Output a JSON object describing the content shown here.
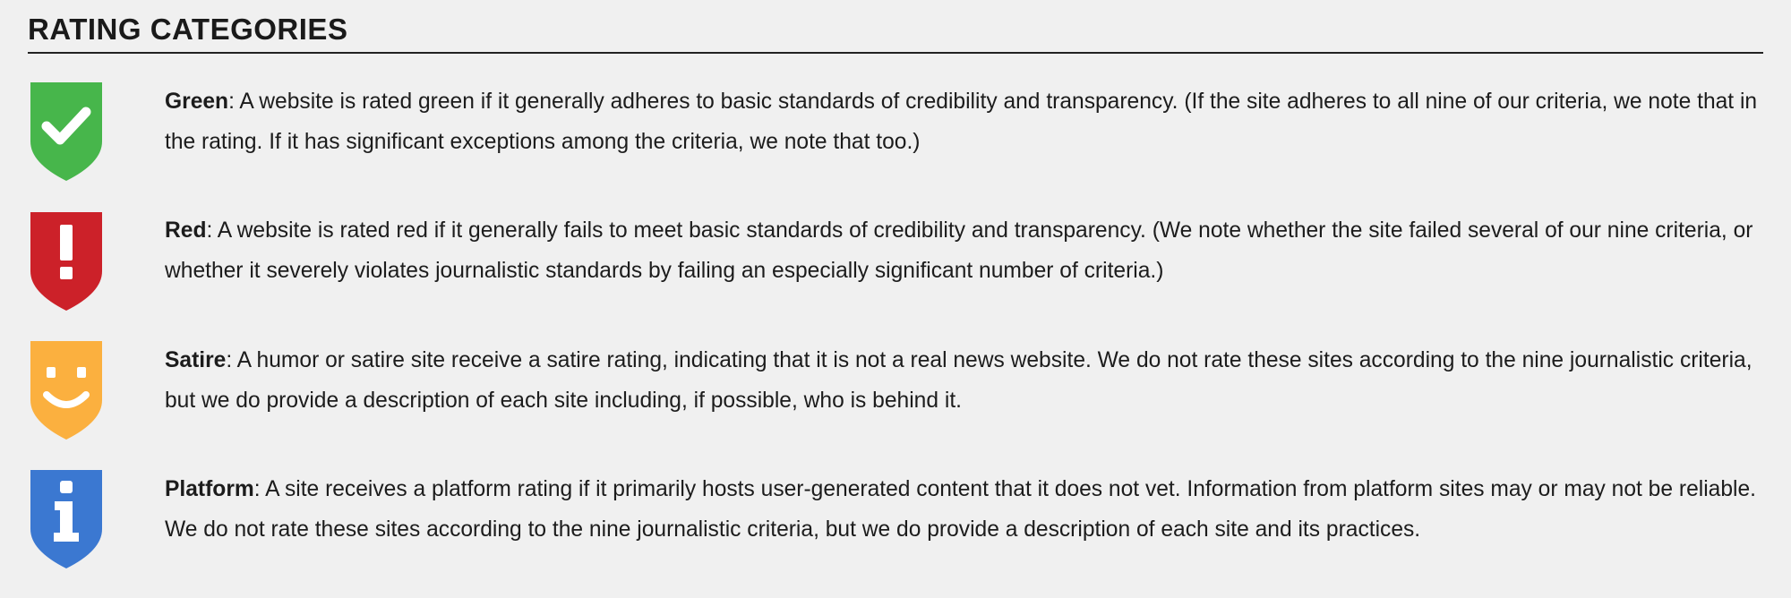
{
  "section": {
    "title": "RATING CATEGORIES"
  },
  "ratings": [
    {
      "label": "Green",
      "separator": ":",
      "text": " A website is rated green if it generally adheres to basic standards of credibility and transparency. (If the site adheres to all nine of our criteria, we note that in the rating. If it has significant exceptions among the criteria, we note that too.)",
      "icon": "check-icon",
      "color": "#47b64b"
    },
    {
      "label": "Red",
      "separator": ":",
      "text": " A website is rated red if it generally fails to meet basic standards of credibility and transparency. (We note whether the site failed several of our nine criteria, or whether it severely violates journalistic standards by failing an especially significant number of criteria.)",
      "icon": "exclamation-icon",
      "color": "#cc2129"
    },
    {
      "label": "Satire",
      "separator": ":",
      "text": " A humor or satire site receive a satire rating, indicating that it is not a real news website. We do not rate these sites according to the nine journalistic criteria, but we do provide a description of each site including, if possible, who is behind it.",
      "icon": "smiley-icon",
      "color": "#fbb03f"
    },
    {
      "label": "Platform",
      "separator": ":",
      "text": " A site receives a platform rating if it primarily hosts user-generated content that it does not vet. Information from platform sites may or may not be reliable. We do not rate these sites according to the nine journalistic criteria, but we do provide a description of each site and its practices.",
      "icon": "info-icon",
      "color": "#3b78d1"
    }
  ]
}
